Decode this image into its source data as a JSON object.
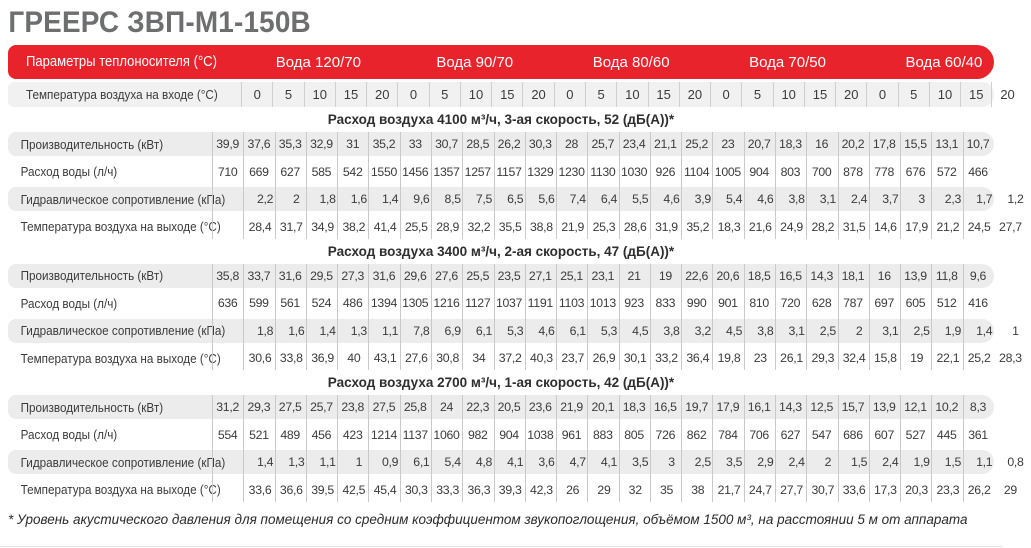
{
  "title": "ГРЕЕРС ЗВП-М1-150В",
  "colors": {
    "accent_red": "#e8232c",
    "stripe_gray": "#ececec",
    "header_row_gray": "#f1f1f1",
    "divider_gray": "#c9c9c9",
    "title_gray": "#6d6e70",
    "text_dark": "#3b3b3b"
  },
  "header": {
    "params_label": "Параметры теплоносителя (°С)",
    "water_groups": [
      "Вода 120/70",
      "Вода 90/70",
      "Вода 80/60",
      "Вода 70/50",
      "Вода 60/40"
    ],
    "inlet_label": "Температура воздуха на входе (°С)",
    "inlet_temps": [
      "0",
      "5",
      "10",
      "15",
      "20",
      "0",
      "5",
      "10",
      "15",
      "20",
      "0",
      "5",
      "10",
      "15",
      "20",
      "0",
      "5",
      "10",
      "15",
      "20",
      "0",
      "5",
      "10",
      "15",
      "20"
    ]
  },
  "row_labels": [
    "Производительность (кВт)",
    "Расход воды (л/ч)",
    "Гидравлическое сопротивление (кПа)",
    "Температура воздуха на выходе (°С)"
  ],
  "sections": [
    {
      "title": "Расход воздуха 4100 м³/ч, 3-ая скорость, 52 (дБ(А))*",
      "rows": [
        [
          "39,9",
          "37,6",
          "35,3",
          "32,9",
          "31",
          "35,2",
          "33",
          "30,7",
          "28,5",
          "26,2",
          "30,3",
          "28",
          "25,7",
          "23,4",
          "21,1",
          "25,2",
          "23",
          "20,7",
          "18,3",
          "16",
          "20,2",
          "17,8",
          "15,5",
          "13,1",
          "10,7"
        ],
        [
          "710",
          "669",
          "627",
          "585",
          "542",
          "1550",
          "1456",
          "1357",
          "1257",
          "1157",
          "1329",
          "1230",
          "1130",
          "1030",
          "926",
          "1104",
          "1005",
          "904",
          "803",
          "700",
          "878",
          "778",
          "676",
          "572",
          "466"
        ],
        [
          "2,2",
          "2",
          "1,8",
          "1,6",
          "1,4",
          "9,6",
          "8,5",
          "7,5",
          "6,5",
          "5,6",
          "7,4",
          "6,4",
          "5,5",
          "4,6",
          "3,9",
          "5,4",
          "4,6",
          "3,8",
          "3,1",
          "2,4",
          "3,7",
          "3",
          "2,3",
          "1,7",
          "1,2"
        ],
        [
          "28,4",
          "31,7",
          "34,9",
          "38,2",
          "41,4",
          "25,5",
          "28,9",
          "32,2",
          "35,5",
          "38,8",
          "21,9",
          "25,3",
          "28,6",
          "31,9",
          "35,2",
          "18,3",
          "21,6",
          "24,9",
          "28,2",
          "31,5",
          "14,6",
          "17,9",
          "21,2",
          "24,5",
          "27,7"
        ]
      ]
    },
    {
      "title": "Расход воздуха 3400 м³/ч, 2-ая скорость, 47 (дБ(А))*",
      "rows": [
        [
          "35,8",
          "33,7",
          "31,6",
          "29,5",
          "27,3",
          "31,6",
          "29,6",
          "27,6",
          "25,5",
          "23,5",
          "27,1",
          "25,1",
          "23,1",
          "21",
          "19",
          "22,6",
          "20,6",
          "18,5",
          "16,5",
          "14,3",
          "18,1",
          "16",
          "13,9",
          "11,8",
          "9,6"
        ],
        [
          "636",
          "599",
          "561",
          "524",
          "486",
          "1394",
          "1305",
          "1216",
          "1127",
          "1037",
          "1191",
          "1103",
          "1013",
          "923",
          "833",
          "990",
          "901",
          "810",
          "720",
          "628",
          "787",
          "697",
          "605",
          "512",
          "416"
        ],
        [
          "1,8",
          "1,6",
          "1,4",
          "1,3",
          "1,1",
          "7,8",
          "6,9",
          "6,1",
          "5,3",
          "4,6",
          "6,1",
          "5,3",
          "4,5",
          "3,8",
          "3,2",
          "4,5",
          "3,8",
          "3,1",
          "2,5",
          "2",
          "3,1",
          "2,5",
          "1,9",
          "1,4",
          "1"
        ],
        [
          "30,6",
          "33,8",
          "36,9",
          "40",
          "43,1",
          "27,6",
          "30,8",
          "34",
          "37,2",
          "40,3",
          "23,7",
          "26,9",
          "30,1",
          "33,2",
          "36,4",
          "19,8",
          "23",
          "26,1",
          "29,3",
          "32,4",
          "15,8",
          "19",
          "22,1",
          "25,2",
          "28,3"
        ]
      ]
    },
    {
      "title": "Расход воздуха 2700 м³/ч, 1-ая скорость, 42 (дБ(А))*",
      "rows": [
        [
          "31,2",
          "29,3",
          "27,5",
          "25,7",
          "23,8",
          "27,5",
          "25,8",
          "24",
          "22,3",
          "20,5",
          "23,6",
          "21,9",
          "20,1",
          "18,3",
          "16,5",
          "19,7",
          "17,9",
          "16,1",
          "14,3",
          "12,5",
          "15,7",
          "13,9",
          "12,1",
          "10,2",
          "8,3"
        ],
        [
          "554",
          "521",
          "489",
          "456",
          "423",
          "1214",
          "1137",
          "1060",
          "982",
          "904",
          "1038",
          "961",
          "883",
          "805",
          "726",
          "862",
          "784",
          "706",
          "627",
          "547",
          "686",
          "607",
          "527",
          "445",
          "361"
        ],
        [
          "1,4",
          "1,3",
          "1,1",
          "1",
          "0,9",
          "6,1",
          "5,4",
          "4,8",
          "4,1",
          "3,6",
          "4,7",
          "4,1",
          "3,5",
          "3",
          "2,5",
          "3,5",
          "2,9",
          "2,4",
          "2",
          "1,5",
          "2,4",
          "1,9",
          "1,5",
          "1,1",
          "0,8"
        ],
        [
          "33,6",
          "36,6",
          "39,5",
          "42,5",
          "45,4",
          "30,3",
          "33,3",
          "36,3",
          "39,3",
          "42,3",
          "26",
          "29",
          "32",
          "35",
          "38",
          "21,7",
          "24,7",
          "27,7",
          "30,7",
          "33,6",
          "17,3",
          "20,3",
          "23,3",
          "26,2",
          "29"
        ]
      ]
    }
  ],
  "footnote": "* Уровень акустического давления для помещения со средним коэффициентом звукопоглощения, объёмом 1500 м³, на расстоянии 5 м от аппарата"
}
